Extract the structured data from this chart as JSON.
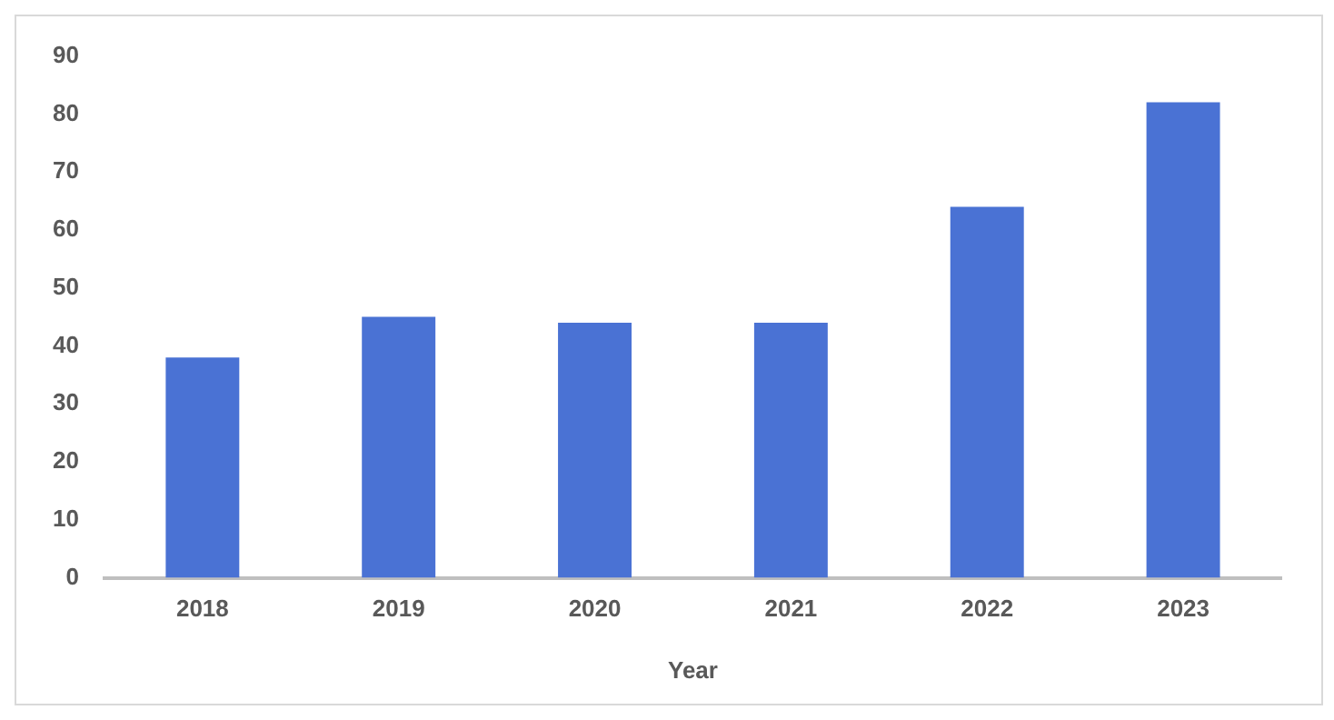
{
  "chart_data": {
    "type": "bar",
    "xlabel": "Year",
    "categories": [
      "2018",
      "2019",
      "2020",
      "2021",
      "2022",
      "2023"
    ],
    "values": [
      38,
      45,
      44,
      44,
      64,
      82
    ],
    "color": "#4a72d4",
    "ylim": [
      0,
      90
    ],
    "yticks": [
      0,
      10,
      20,
      30,
      40,
      50,
      60,
      70,
      80,
      90
    ],
    "grid": false,
    "legend": false
  }
}
